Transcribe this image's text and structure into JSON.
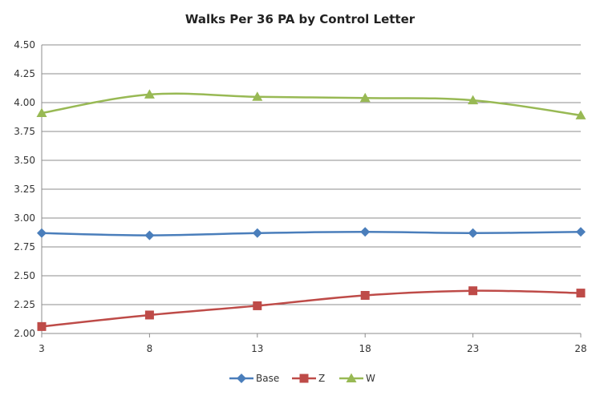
{
  "chart_data": {
    "type": "line",
    "title": "Walks Per 36 PA by Control Letter",
    "xlabel": "",
    "ylabel": "",
    "x": [
      3,
      8,
      13,
      18,
      23,
      28
    ],
    "x_ticks": [
      "3",
      "8",
      "13",
      "18",
      "23",
      "28"
    ],
    "ylim": [
      2.0,
      4.5
    ],
    "y_ticks": [
      "2.00",
      "2.25",
      "2.50",
      "2.75",
      "3.00",
      "3.25",
      "3.50",
      "3.75",
      "4.00",
      "4.25",
      "4.50"
    ],
    "grid": true,
    "legend_position": "bottom",
    "series": [
      {
        "name": "Base",
        "color": "#4a7ebb",
        "marker": "diamond",
        "values": [
          2.87,
          2.85,
          2.87,
          2.88,
          2.87,
          2.88
        ]
      },
      {
        "name": "Z",
        "color": "#be4b48",
        "marker": "square",
        "values": [
          2.06,
          2.16,
          2.24,
          2.33,
          2.37,
          2.35
        ]
      },
      {
        "name": "W",
        "color": "#98b954",
        "marker": "triangle",
        "values": [
          3.91,
          4.07,
          4.05,
          4.04,
          4.02,
          3.89
        ]
      }
    ]
  }
}
